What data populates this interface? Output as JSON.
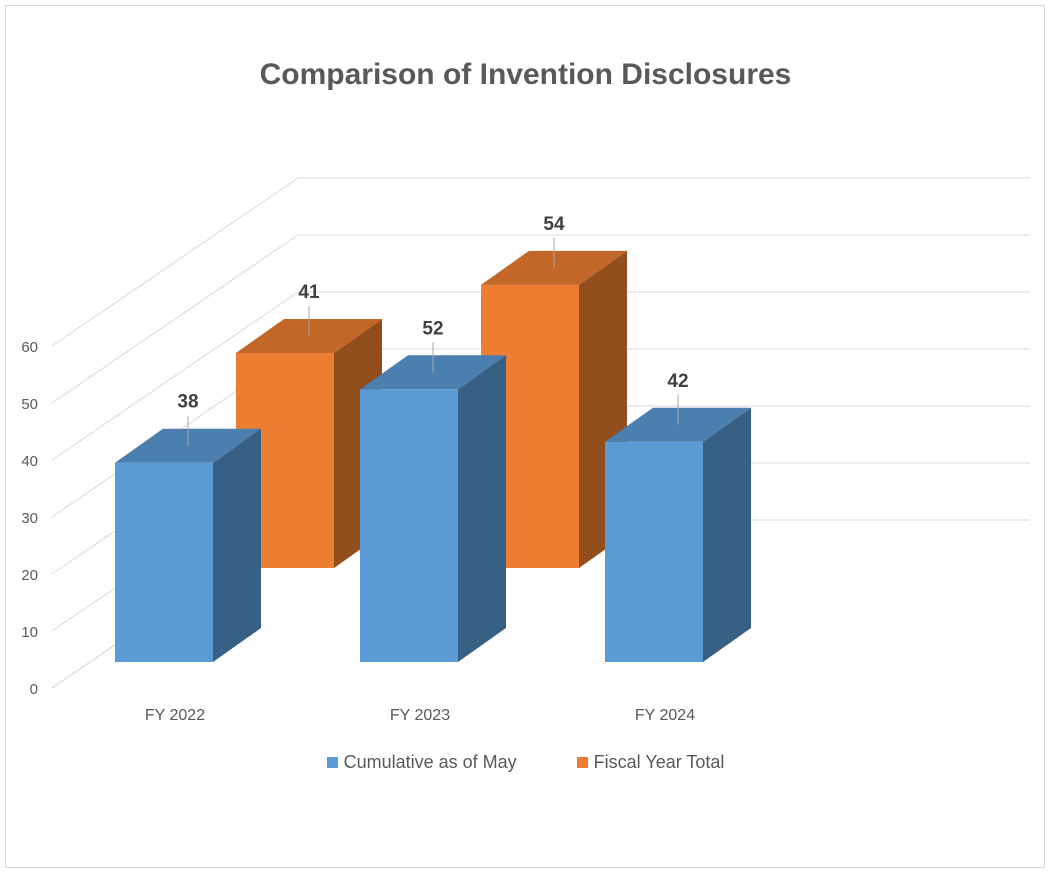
{
  "chart_data": {
    "type": "bar",
    "title": "Comparison of Invention Disclosures",
    "categories": [
      "FY 2022",
      "FY 2023",
      "FY 2024"
    ],
    "series": [
      {
        "name": "Cumulative as of May",
        "values": [
          38,
          52,
          42
        ],
        "color": "#5b9bd5"
      },
      {
        "name": "Fiscal Year Total",
        "values": [
          41,
          54,
          null
        ],
        "color": "#ed7d31"
      }
    ],
    "ylim": [
      0,
      60
    ],
    "yticks": [
      0,
      10,
      20,
      30,
      40,
      50,
      60
    ],
    "xlabel": "",
    "ylabel": "",
    "grid": true,
    "legend": "bottom",
    "three_d": true
  }
}
